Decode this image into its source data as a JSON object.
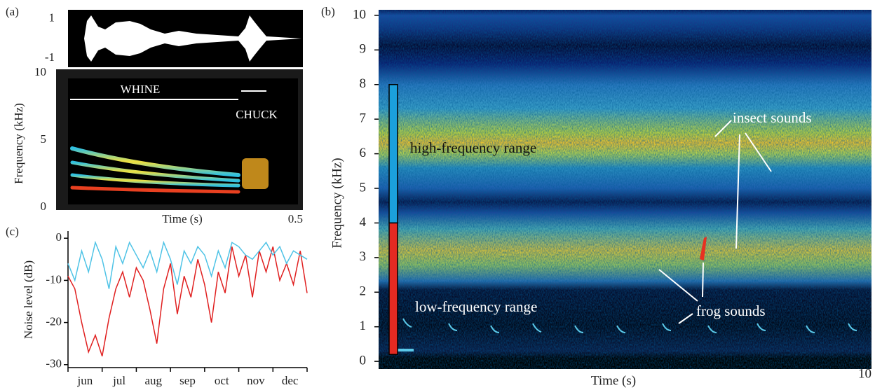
{
  "chart_data": [
    {
      "type": "waveform",
      "panel": "(a)",
      "ylim": [
        -1.45,
        1.45
      ],
      "yticks": [
        1,
        -1
      ]
    },
    {
      "type": "spectrogram",
      "ylabel": "Frequency (kHz)",
      "xlabel": "Time (s)",
      "ylim": [
        -0.2,
        10.26
      ],
      "yticks": [
        10,
        5,
        0
      ],
      "xlim": [
        0,
        0.5
      ],
      "xticks": [
        0.5
      ],
      "annotations": [
        "WHINE",
        "CHUCK"
      ]
    },
    {
      "type": "line",
      "panel": "(c)",
      "ylabel": "Noise level (dB)",
      "ylim": [
        -30.7,
        1.7
      ],
      "yticks": [
        0,
        -10,
        -20,
        -30
      ],
      "xlim": [
        0,
        7
      ],
      "xticks": [
        {
          "value": 0.5,
          "label": "jun"
        },
        {
          "value": 1.5,
          "label": "jul"
        },
        {
          "value": 2.5,
          "label": "aug"
        },
        {
          "value": 3.5,
          "label": "sep"
        },
        {
          "value": 4.5,
          "label": "oct"
        },
        {
          "value": 5.5,
          "label": "nov"
        },
        {
          "value": 6.5,
          "label": "dec"
        }
      ],
      "x": [
        0,
        0.2,
        0.4,
        0.6,
        0.8,
        1,
        1.2,
        1.4,
        1.6,
        1.8,
        2,
        2.2,
        2.4,
        2.6,
        2.8,
        3,
        3.2,
        3.4,
        3.6,
        3.8,
        4,
        4.2,
        4.4,
        4.6,
        4.8,
        5,
        5.2,
        5.4,
        5.6,
        5.8,
        6,
        6.2,
        6.4,
        6.6,
        6.8,
        7
      ],
      "series": [
        {
          "color": "#e02020",
          "values": [
            -9,
            -12,
            -20,
            -27,
            -23,
            -28,
            -19,
            -12,
            -8,
            -14,
            -7,
            -10,
            -17,
            -25,
            -12,
            -6,
            -18,
            -9,
            -14,
            -5,
            -11,
            -20,
            -8,
            -13,
            -2,
            -9,
            -4,
            -14,
            -3,
            -8,
            -2,
            -10,
            -6,
            -11,
            -3,
            -13
          ]
        },
        {
          "color": "#4ec3e6",
          "values": [
            -6,
            -10,
            -3,
            -8,
            -1,
            -5,
            -12,
            -2,
            -6,
            -1,
            -4,
            -7,
            -3,
            -8,
            -1,
            -5,
            -11,
            -3,
            -6,
            -2,
            -4,
            -9,
            -3,
            -7,
            -1,
            -2,
            -4,
            -5,
            -3,
            -1,
            -4,
            -2,
            -6,
            -3,
            -4,
            -5
          ]
        }
      ]
    },
    {
      "type": "spectrogram",
      "panel": "(b)",
      "ylabel": "Frequency (kHz)",
      "xlabel": "Time (s)",
      "ylim": [
        -0.22,
        10.16
      ],
      "yticks": [
        0,
        1,
        2,
        3,
        4,
        5,
        6,
        7,
        8,
        9,
        10
      ],
      "xlim": [
        0,
        10
      ],
      "xticks": [
        10
      ],
      "ranges": [
        {
          "label": "high-frequency range",
          "from": 4,
          "to": 8,
          "color": "#1ba0dc"
        },
        {
          "label": "low-frequency range",
          "from": 0.2,
          "to": 4,
          "color": "#e42a22"
        }
      ],
      "annotations": [
        "insect sounds",
        "frog sounds"
      ]
    }
  ]
}
